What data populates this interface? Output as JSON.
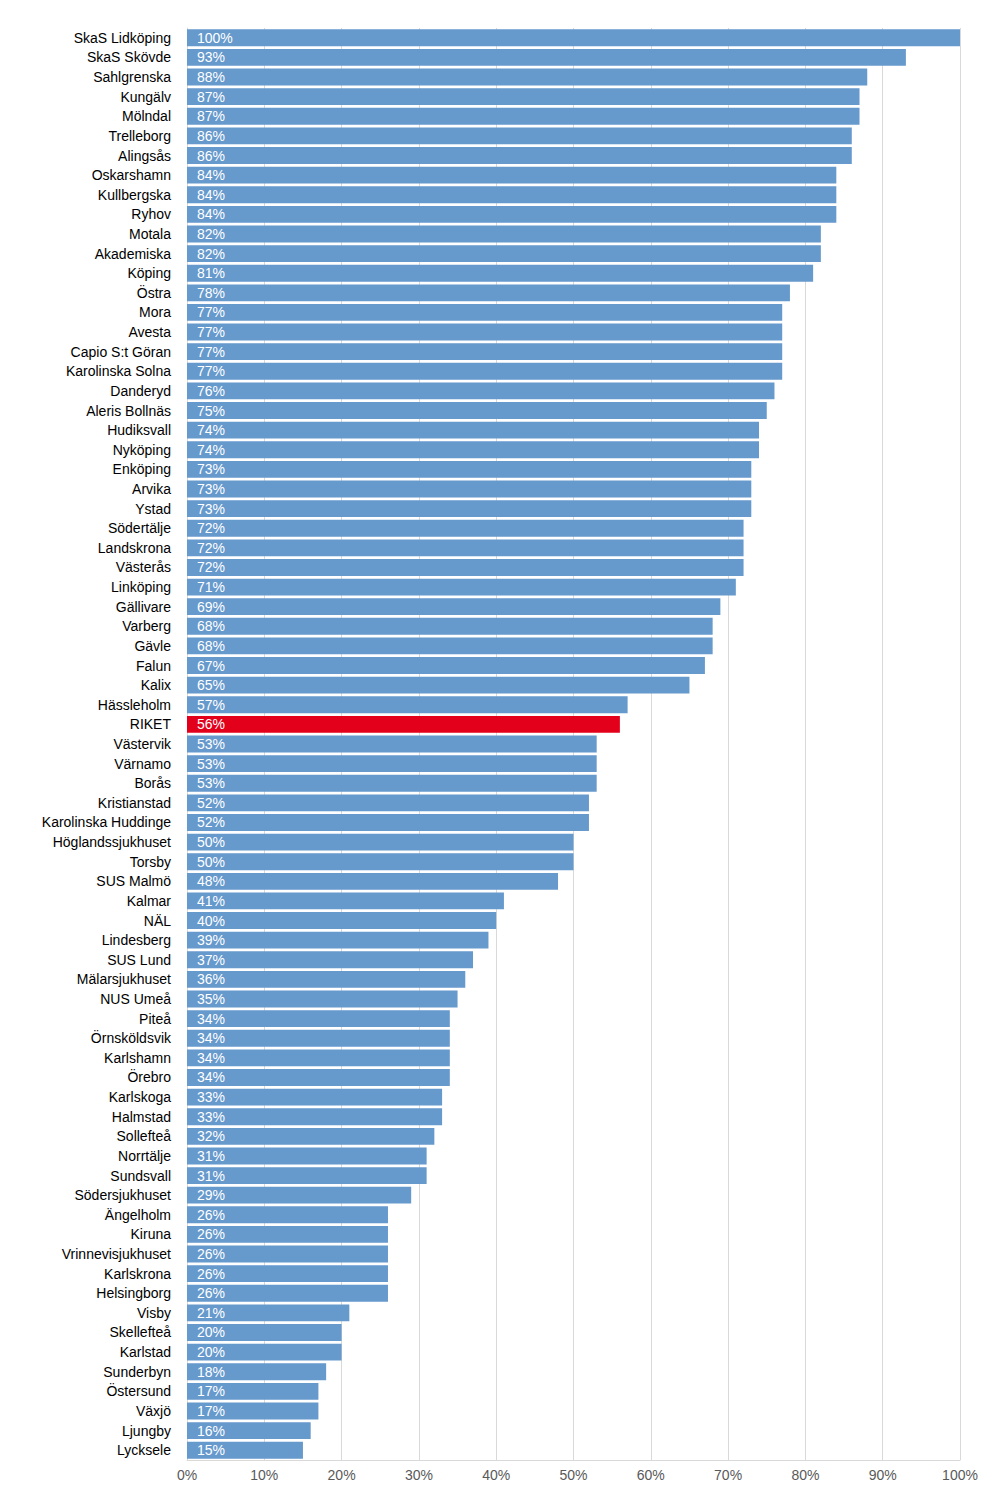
{
  "chart_data": {
    "type": "bar",
    "orientation": "horizontal",
    "grid": true,
    "data_labels": true,
    "categories": [
      "SkaS Lidköping",
      "SkaS Skövde",
      "Sahlgrenska",
      "Kungälv",
      "Mölndal",
      "Trelleborg",
      "Alingsås",
      "Oskarshamn",
      "Kullbergska",
      "Ryhov",
      "Motala",
      "Akademiska",
      "Köping",
      "Östra",
      "Mora",
      "Avesta",
      "Capio S:t Göran",
      "Karolinska Solna",
      "Danderyd",
      "Aleris Bollnäs",
      "Hudiksvall",
      "Nyköping",
      "Enköping",
      "Arvika",
      "Ystad",
      "Södertälje",
      "Landskrona",
      "Västerås",
      "Linköping",
      "Gällivare",
      "Varberg",
      "Gävle",
      "Falun",
      "Kalix",
      "Hässleholm",
      "RIKET",
      "Västervik",
      "Värnamo",
      "Borås",
      "Kristianstad",
      "Karolinska Huddinge",
      "Höglandssjukhuset",
      "Torsby",
      "SUS Malmö",
      "Kalmar",
      "NÄL",
      "Lindesberg",
      "SUS Lund",
      "Mälarsjukhuset",
      "NUS Umeå",
      "Piteå",
      "Örnsköldsvik",
      "Karlshamn",
      "Örebro",
      "Karlskoga",
      "Halmstad",
      "Sollefteå",
      "Norrtälje",
      "Sundsvall",
      "Södersjukhuset",
      "Ängelholm",
      "Kiruna",
      "Vrinnevisjukhuset",
      "Karlskrona",
      "Helsingborg",
      "Visby",
      "Skellefteå",
      "Karlstad",
      "Sunderbyn",
      "Östersund",
      "Växjö",
      "Ljungby",
      "Lycksele"
    ],
    "values": [
      100,
      93,
      88,
      87,
      87,
      86,
      86,
      84,
      84,
      84,
      82,
      82,
      81,
      78,
      77,
      77,
      77,
      77,
      76,
      75,
      74,
      74,
      73,
      73,
      73,
      72,
      72,
      72,
      71,
      69,
      68,
      68,
      67,
      65,
      57,
      56,
      53,
      53,
      53,
      52,
      52,
      50,
      50,
      48,
      41,
      40,
      39,
      37,
      36,
      35,
      34,
      34,
      34,
      34,
      33,
      33,
      32,
      31,
      31,
      29,
      26,
      26,
      26,
      26,
      26,
      21,
      20,
      20,
      18,
      17,
      17,
      16,
      15
    ],
    "value_labels": [
      "100%",
      "93%",
      "88%",
      "87%",
      "87%",
      "86%",
      "86%",
      "84%",
      "84%",
      "84%",
      "82%",
      "82%",
      "81%",
      "78%",
      "77%",
      "77%",
      "77%",
      "77%",
      "76%",
      "75%",
      "74%",
      "74%",
      "73%",
      "73%",
      "73%",
      "72%",
      "72%",
      "72%",
      "71%",
      "69%",
      "68%",
      "68%",
      "67%",
      "65%",
      "57%",
      "56%",
      "53%",
      "53%",
      "53%",
      "52%",
      "52%",
      "50%",
      "50%",
      "48%",
      "41%",
      "40%",
      "39%",
      "37%",
      "36%",
      "35%",
      "34%",
      "34%",
      "34%",
      "34%",
      "33%",
      "33%",
      "32%",
      "31%",
      "31%",
      "29%",
      "26%",
      "26%",
      "26%",
      "26%",
      "26%",
      "21%",
      "20%",
      "20%",
      "18%",
      "17%",
      "17%",
      "16%",
      "15%"
    ],
    "colors": [
      "#6699cc",
      "#6699cc",
      "#6699cc",
      "#6699cc",
      "#6699cc",
      "#6699cc",
      "#6699cc",
      "#6699cc",
      "#6699cc",
      "#6699cc",
      "#6699cc",
      "#6699cc",
      "#6699cc",
      "#6699cc",
      "#6699cc",
      "#6699cc",
      "#6699cc",
      "#6699cc",
      "#6699cc",
      "#6699cc",
      "#6699cc",
      "#6699cc",
      "#6699cc",
      "#6699cc",
      "#6699cc",
      "#6699cc",
      "#6699cc",
      "#6699cc",
      "#6699cc",
      "#6699cc",
      "#6699cc",
      "#6699cc",
      "#6699cc",
      "#6699cc",
      "#6699cc",
      "#e2001a",
      "#6699cc",
      "#6699cc",
      "#6699cc",
      "#6699cc",
      "#6699cc",
      "#6699cc",
      "#6699cc",
      "#6699cc",
      "#6699cc",
      "#6699cc",
      "#6699cc",
      "#6699cc",
      "#6699cc",
      "#6699cc",
      "#6699cc",
      "#6699cc",
      "#6699cc",
      "#6699cc",
      "#6699cc",
      "#6699cc",
      "#6699cc",
      "#6699cc",
      "#6699cc",
      "#6699cc",
      "#6699cc",
      "#6699cc",
      "#6699cc",
      "#6699cc",
      "#6699cc",
      "#6699cc",
      "#6699cc",
      "#6699cc",
      "#6699cc",
      "#6699cc",
      "#6699cc",
      "#6699cc",
      "#6699cc"
    ],
    "xlim": [
      0,
      100
    ],
    "xticks": [
      {
        "value": 0,
        "label": "0%"
      },
      {
        "value": 10,
        "label": "10%"
      },
      {
        "value": 20,
        "label": "20%"
      },
      {
        "value": 30,
        "label": "30%"
      },
      {
        "value": 40,
        "label": "40%"
      },
      {
        "value": 50,
        "label": "50%"
      },
      {
        "value": 60,
        "label": "60%"
      },
      {
        "value": 70,
        "label": "70%"
      },
      {
        "value": 80,
        "label": "80%"
      },
      {
        "value": 90,
        "label": "90%"
      },
      {
        "value": 100,
        "label": "100%"
      }
    ]
  }
}
